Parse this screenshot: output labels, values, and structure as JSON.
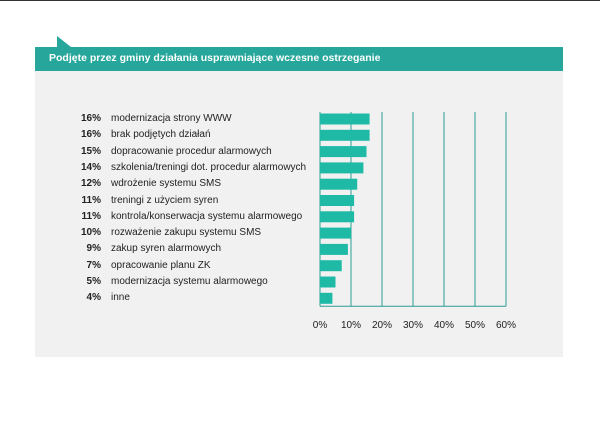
{
  "header": {
    "title": "Podjęte przez gminy działania usprawniające wczesne ostrzeganie"
  },
  "colors": {
    "accent": "#27a79b",
    "bar": "#1ebaa6",
    "gridline": "#2a9e94",
    "card_bg": "#f1f1f1"
  },
  "chart_data": {
    "type": "bar",
    "orientation": "horizontal",
    "title": "Podjęte przez gminy działania usprawniające wczesne ostrzeganie",
    "xlim": [
      0,
      60
    ],
    "x_ticks": [
      "0%",
      "10%",
      "20%",
      "30%",
      "40%",
      "50%",
      "60%"
    ],
    "grid": true,
    "categories": [
      "modernizacja strony WWW",
      "brak podjętych działań",
      "dopracowanie procedur alarmowych",
      "szkolenia/treningi dot. procedur alarmowych",
      "wdrożenie systemu SMS",
      "treningi z użyciem syren",
      "kontrola/konserwacja systemu alarmowego",
      "rozważenie zakupu systemu SMS",
      "zakup syren alarmowych",
      "opracowanie planu ZK",
      "modernizacja systemu alarmowego",
      "inne"
    ],
    "values": [
      16,
      16,
      15,
      14,
      12,
      11,
      11,
      10,
      9,
      7,
      5,
      4
    ],
    "value_labels": [
      "16%",
      "16%",
      "15%",
      "14%",
      "12%",
      "11%",
      "11%",
      "10%",
      "9%",
      "7%",
      "5%",
      "4%"
    ]
  }
}
